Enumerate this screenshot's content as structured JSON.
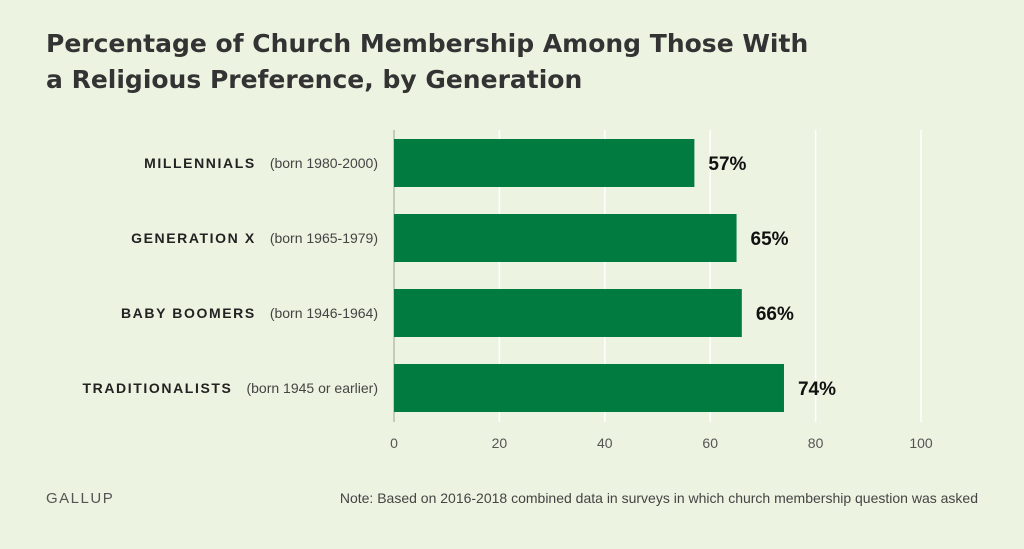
{
  "title": {
    "line1": "Percentage of Church Membership Among Those With",
    "line2": "a Religious Preference, by Generation"
  },
  "chart_data": {
    "type": "bar",
    "orientation": "horizontal",
    "categories": [
      "MILLENNIALS",
      "GENERATION X",
      "BABY BOOMERS",
      "TRADITIONALISTS"
    ],
    "subcategories": [
      "(born 1980-2000)",
      "(born 1965-1979)",
      "(born 1946-1964)",
      "(born 1945 or earlier)"
    ],
    "values": [
      57,
      65,
      66,
      74
    ],
    "data_labels": [
      "57%",
      "65%",
      "66%",
      "74%"
    ],
    "xlim": [
      0,
      100
    ],
    "xticks": [
      0,
      20,
      40,
      60,
      80,
      100
    ],
    "xtick_labels": [
      "0",
      "20",
      "40",
      "60",
      "80",
      "100"
    ],
    "grid": true,
    "bar_color": "#017b3f"
  },
  "footer": {
    "brand": "GALLUP",
    "note": "Note: Based on 2016-2018 combined data in surveys in which church membership question was asked"
  }
}
